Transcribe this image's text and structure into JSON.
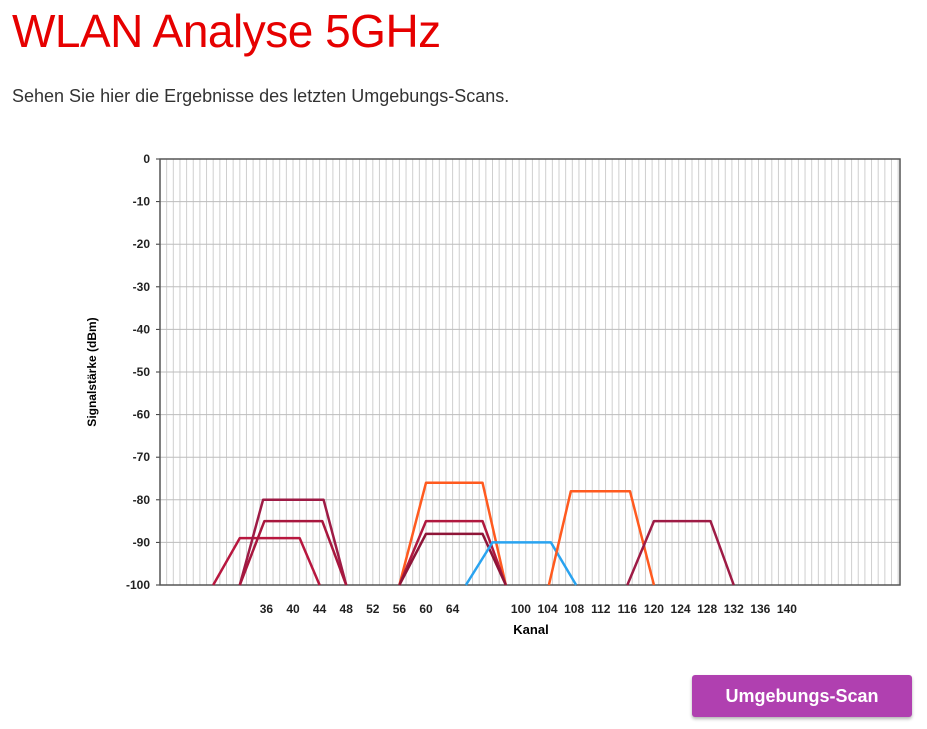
{
  "header": {
    "title": "WLAN Analyse 5GHz",
    "description": "Sehen Sie hier die Ergebnisse des letzten Umgebungs-Scans."
  },
  "chart_data": {
    "type": "line",
    "x_label": "Kanal",
    "y_label": "Signalstärke (dBm)",
    "xlim": [
      20,
      157
    ],
    "xticks": [
      36,
      40,
      44,
      48,
      52,
      56,
      60,
      64,
      100,
      104,
      108,
      112,
      116,
      120,
      124,
      128,
      132,
      136,
      140
    ],
    "ylim": [
      -100,
      0
    ],
    "yticks": [
      0,
      -10,
      -20,
      -30,
      -40,
      -50,
      -60,
      -70,
      -80,
      -90,
      -100
    ],
    "grid": true,
    "series": [
      {
        "color": "#b8173f",
        "x": [
          28,
          32,
          41,
          44
        ],
        "values": [
          -100,
          -89,
          -89,
          -100
        ]
      },
      {
        "color": "#9e1b45",
        "x": [
          32,
          35.5,
          44.6,
          48
        ],
        "values": [
          -100,
          -80,
          -80,
          -100
        ]
      },
      {
        "color": "#a8173e",
        "x": [
          32,
          35.7,
          44.4,
          48
        ],
        "values": [
          -100,
          -85,
          -85,
          -100
        ]
      },
      {
        "color": "#ff5a1f",
        "x": [
          56,
          60,
          68.5,
          72
        ],
        "values": [
          -100,
          -76,
          -76,
          -100
        ]
      },
      {
        "color": "#b0193f",
        "x": [
          56,
          60,
          68.5,
          72
        ],
        "values": [
          -100,
          -85,
          -85,
          -100
        ]
      },
      {
        "color": "#8e1538",
        "x": [
          56,
          60,
          68.5,
          72
        ],
        "values": [
          -100,
          -88,
          -88,
          -100
        ]
      },
      {
        "color": "#29a3f0",
        "x": [
          66,
          70,
          104.5,
          108.3
        ],
        "values": [
          -100,
          -90,
          -90,
          -100
        ]
      },
      {
        "color": "#ff5a1f",
        "x": [
          104.2,
          107.5,
          116.4,
          120
        ],
        "values": [
          -100,
          -78,
          -78,
          -100
        ]
      },
      {
        "color": "#9e1b45",
        "x": [
          116,
          120,
          128.5,
          132
        ],
        "values": [
          -100,
          -85,
          -85,
          -100
        ]
      }
    ]
  },
  "button": {
    "label": "Umgebungs-Scan"
  }
}
